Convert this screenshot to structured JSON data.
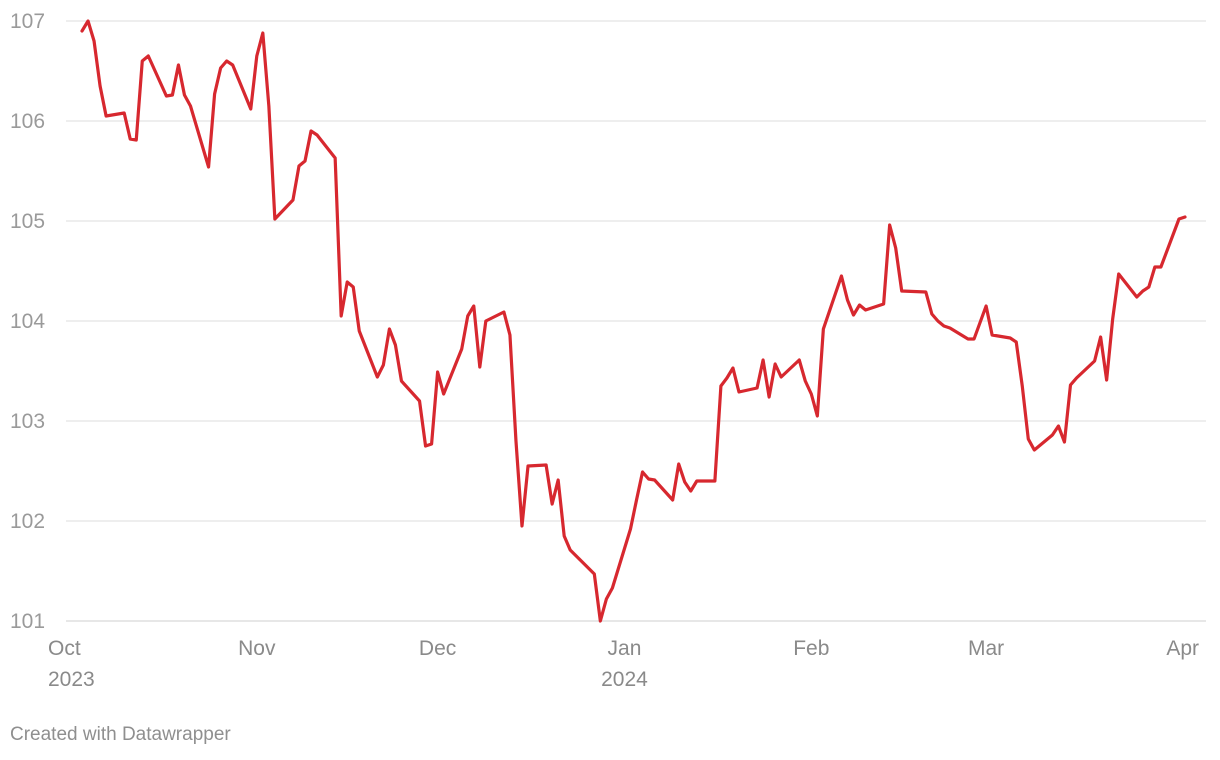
{
  "credit": "Created with Datawrapper",
  "colors": {
    "line": "#d7282f",
    "grid": "#dedede",
    "tick_text": "#9a9a9a"
  },
  "chart_data": {
    "type": "line",
    "title": "",
    "xlabel": "",
    "ylabel": "",
    "ylim": [
      101,
      107
    ],
    "yticks": [
      101,
      102,
      103,
      104,
      105,
      106,
      107
    ],
    "grid": true,
    "xticks": [
      {
        "date": "2023-10-01",
        "label": "Oct",
        "sublabel": "2023"
      },
      {
        "date": "2023-11-01",
        "label": "Nov",
        "sublabel": ""
      },
      {
        "date": "2023-12-01",
        "label": "Dec",
        "sublabel": ""
      },
      {
        "date": "2024-01-01",
        "label": "Jan",
        "sublabel": "2024"
      },
      {
        "date": "2024-02-01",
        "label": "Feb",
        "sublabel": ""
      },
      {
        "date": "2024-03-01",
        "label": "Mar",
        "sublabel": ""
      },
      {
        "date": "2024-04-01",
        "label": "Apr",
        "sublabel": ""
      }
    ],
    "series": [
      {
        "points": [
          [
            "2023-10-03",
            106.9
          ],
          [
            "2023-10-04",
            107.0
          ],
          [
            "2023-10-05",
            106.8
          ],
          [
            "2023-10-06",
            106.35
          ],
          [
            "2023-10-07",
            106.05
          ],
          [
            "2023-10-10",
            106.08
          ],
          [
            "2023-10-11",
            105.82
          ],
          [
            "2023-10-12",
            105.81
          ],
          [
            "2023-10-13",
            106.6
          ],
          [
            "2023-10-14",
            106.65
          ],
          [
            "2023-10-17",
            106.25
          ],
          [
            "2023-10-18",
            106.26
          ],
          [
            "2023-10-19",
            106.56
          ],
          [
            "2023-10-20",
            106.26
          ],
          [
            "2023-10-21",
            106.15
          ],
          [
            "2023-10-24",
            105.54
          ],
          [
            "2023-10-25",
            106.27
          ],
          [
            "2023-10-26",
            106.53
          ],
          [
            "2023-10-27",
            106.6
          ],
          [
            "2023-10-28",
            106.56
          ],
          [
            "2023-10-31",
            106.12
          ],
          [
            "2023-11-01",
            106.65
          ],
          [
            "2023-11-02",
            106.88
          ],
          [
            "2023-11-03",
            106.15
          ],
          [
            "2023-11-04",
            105.02
          ],
          [
            "2023-11-07",
            105.21
          ],
          [
            "2023-11-08",
            105.55
          ],
          [
            "2023-11-09",
            105.6
          ],
          [
            "2023-11-10",
            105.9
          ],
          [
            "2023-11-11",
            105.86
          ],
          [
            "2023-11-14",
            105.63
          ],
          [
            "2023-11-15",
            104.05
          ],
          [
            "2023-11-16",
            104.39
          ],
          [
            "2023-11-17",
            104.34
          ],
          [
            "2023-11-18",
            103.9
          ],
          [
            "2023-11-21",
            103.44
          ],
          [
            "2023-11-22",
            103.56
          ],
          [
            "2023-11-23",
            103.92
          ],
          [
            "2023-11-24",
            103.76
          ],
          [
            "2023-11-25",
            103.4
          ],
          [
            "2023-11-28",
            103.2
          ],
          [
            "2023-11-29",
            102.75
          ],
          [
            "2023-11-30",
            102.77
          ],
          [
            "2023-12-01",
            103.49
          ],
          [
            "2023-12-02",
            103.27
          ],
          [
            "2023-12-05",
            103.72
          ],
          [
            "2023-12-06",
            104.05
          ],
          [
            "2023-12-07",
            104.15
          ],
          [
            "2023-12-08",
            103.54
          ],
          [
            "2023-12-09",
            104.0
          ],
          [
            "2023-12-12",
            104.09
          ],
          [
            "2023-12-13",
            103.86
          ],
          [
            "2023-12-14",
            102.8
          ],
          [
            "2023-12-15",
            101.95
          ],
          [
            "2023-12-16",
            102.55
          ],
          [
            "2023-12-19",
            102.56
          ],
          [
            "2023-12-20",
            102.17
          ],
          [
            "2023-12-21",
            102.41
          ],
          [
            "2023-12-22",
            101.85
          ],
          [
            "2023-12-23",
            101.71
          ],
          [
            "2023-12-27",
            101.47
          ],
          [
            "2023-12-28",
            101.0
          ],
          [
            "2023-12-29",
            101.22
          ],
          [
            "2023-12-30",
            101.33
          ],
          [
            "2024-01-02",
            101.92
          ],
          [
            "2024-01-03",
            102.21
          ],
          [
            "2024-01-04",
            102.49
          ],
          [
            "2024-01-05",
            102.42
          ],
          [
            "2024-01-06",
            102.41
          ],
          [
            "2024-01-09",
            102.21
          ],
          [
            "2024-01-10",
            102.57
          ],
          [
            "2024-01-11",
            102.39
          ],
          [
            "2024-01-12",
            102.3
          ],
          [
            "2024-01-13",
            102.4
          ],
          [
            "2024-01-16",
            102.4
          ],
          [
            "2024-01-17",
            103.35
          ],
          [
            "2024-01-18",
            103.43
          ],
          [
            "2024-01-19",
            103.53
          ],
          [
            "2024-01-20",
            103.29
          ],
          [
            "2024-01-23",
            103.33
          ],
          [
            "2024-01-24",
            103.61
          ],
          [
            "2024-01-25",
            103.24
          ],
          [
            "2024-01-26",
            103.57
          ],
          [
            "2024-01-27",
            103.44
          ],
          [
            "2024-01-30",
            103.61
          ],
          [
            "2024-01-31",
            103.4
          ],
          [
            "2024-02-01",
            103.27
          ],
          [
            "2024-02-02",
            103.05
          ],
          [
            "2024-02-03",
            103.92
          ],
          [
            "2024-02-06",
            104.45
          ],
          [
            "2024-02-07",
            104.21
          ],
          [
            "2024-02-08",
            104.06
          ],
          [
            "2024-02-09",
            104.16
          ],
          [
            "2024-02-10",
            104.11
          ],
          [
            "2024-02-13",
            104.17
          ],
          [
            "2024-02-14",
            104.96
          ],
          [
            "2024-02-15",
            104.73
          ],
          [
            "2024-02-16",
            104.3
          ],
          [
            "2024-02-20",
            104.29
          ],
          [
            "2024-02-21",
            104.07
          ],
          [
            "2024-02-22",
            104.0
          ],
          [
            "2024-02-23",
            103.95
          ],
          [
            "2024-02-24",
            103.93
          ],
          [
            "2024-02-27",
            103.82
          ],
          [
            "2024-02-28",
            103.82
          ],
          [
            "2024-03-01",
            104.15
          ],
          [
            "2024-03-02",
            103.86
          ],
          [
            "2024-03-05",
            103.83
          ],
          [
            "2024-03-06",
            103.79
          ],
          [
            "2024-03-07",
            103.35
          ],
          [
            "2024-03-08",
            102.82
          ],
          [
            "2024-03-09",
            102.71
          ],
          [
            "2024-03-12",
            102.86
          ],
          [
            "2024-03-13",
            102.95
          ],
          [
            "2024-03-14",
            102.79
          ],
          [
            "2024-03-15",
            103.36
          ],
          [
            "2024-03-16",
            103.43
          ],
          [
            "2024-03-19",
            103.6
          ],
          [
            "2024-03-20",
            103.84
          ],
          [
            "2024-03-21",
            103.41
          ],
          [
            "2024-03-22",
            104.02
          ],
          [
            "2024-03-23",
            104.47
          ],
          [
            "2024-03-26",
            104.24
          ],
          [
            "2024-03-27",
            104.3
          ],
          [
            "2024-03-28",
            104.34
          ],
          [
            "2024-03-29",
            104.54
          ],
          [
            "2024-03-30",
            104.54
          ],
          [
            "2024-04-02",
            105.02
          ],
          [
            "2024-04-03",
            105.04
          ]
        ]
      }
    ]
  }
}
